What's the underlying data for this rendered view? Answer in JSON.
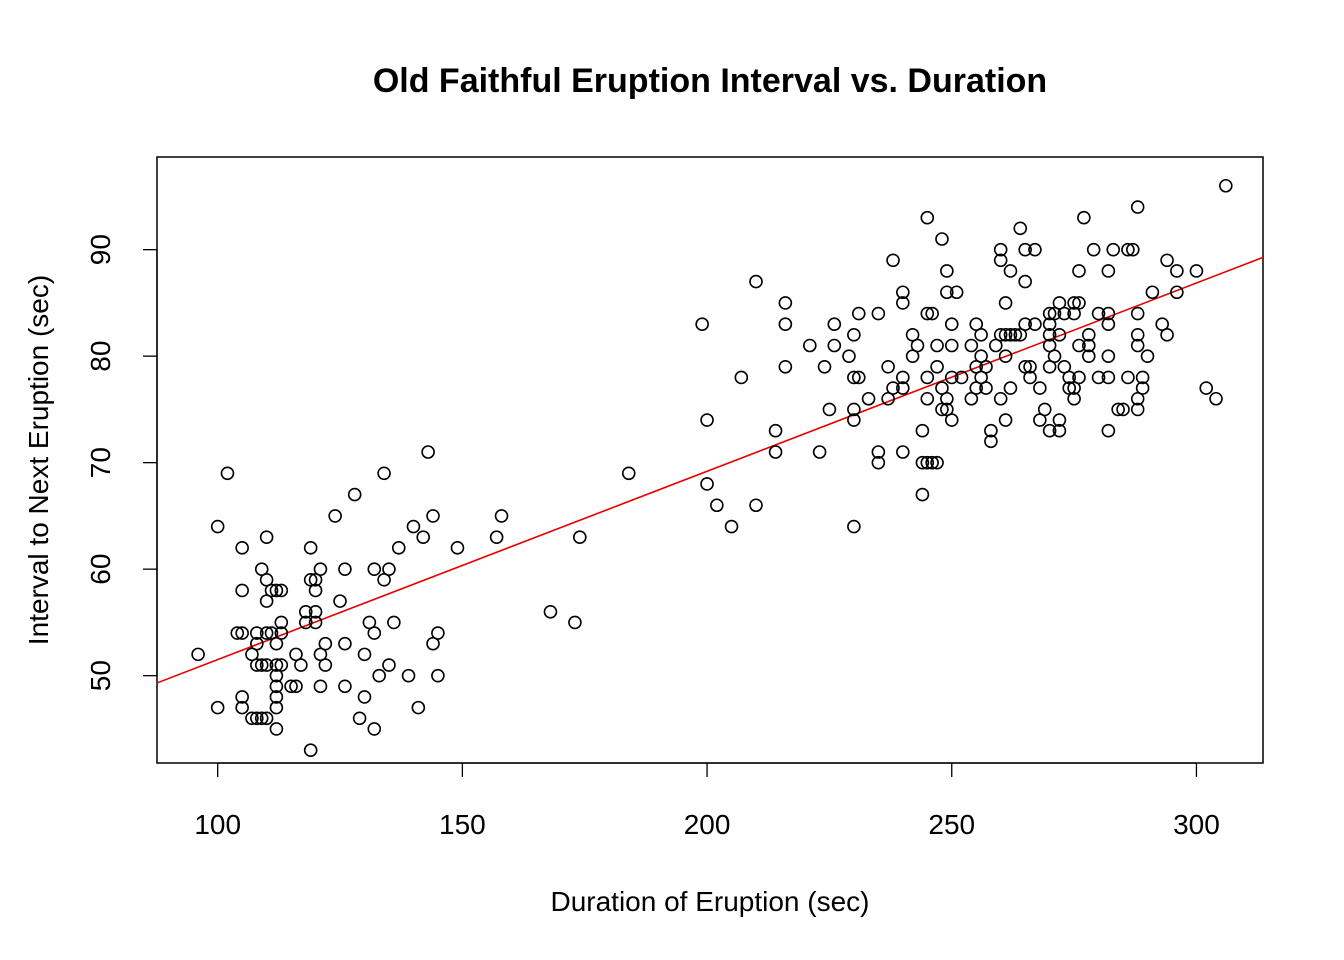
{
  "chart_data": {
    "type": "scatter",
    "title": "Old Faithful Eruption Interval vs. Duration",
    "xlabel": "Duration of Eruption (sec)",
    "ylabel": "Interval to Next Eruption (sec)",
    "xlim": [
      87.6,
      313.6
    ],
    "ylim": [
      41.8,
      98.7
    ],
    "xticks": [
      100,
      150,
      200,
      250,
      300
    ],
    "yticks": [
      50,
      60,
      70,
      80,
      90
    ],
    "grid": false,
    "legend": "none",
    "colors": {
      "points": "#000000",
      "fit_line": "#e60000"
    },
    "fit_line": {
      "intercept": 33.83,
      "slope": 0.1768
    },
    "points": [
      [
        96,
        52
      ],
      [
        100,
        64
      ],
      [
        100,
        47
      ],
      [
        102,
        69
      ],
      [
        104,
        54
      ],
      [
        105,
        62
      ],
      [
        105,
        58
      ],
      [
        105,
        54
      ],
      [
        105,
        48
      ],
      [
        105,
        47
      ],
      [
        107,
        52
      ],
      [
        107,
        46
      ],
      [
        108,
        54
      ],
      [
        108,
        53
      ],
      [
        108,
        51
      ],
      [
        108,
        46
      ],
      [
        109,
        60
      ],
      [
        109,
        51
      ],
      [
        109,
        46
      ],
      [
        110,
        63
      ],
      [
        110,
        59
      ],
      [
        110,
        57
      ],
      [
        110,
        54
      ],
      [
        110,
        51
      ],
      [
        110,
        46
      ],
      [
        111,
        58
      ],
      [
        111,
        54
      ],
      [
        112,
        58
      ],
      [
        112,
        53
      ],
      [
        112,
        51
      ],
      [
        112,
        50
      ],
      [
        112,
        49
      ],
      [
        112,
        48
      ],
      [
        112,
        47
      ],
      [
        112,
        45
      ],
      [
        113,
        58
      ],
      [
        113,
        55
      ],
      [
        113,
        54
      ],
      [
        113,
        51
      ],
      [
        115,
        49
      ],
      [
        116,
        52
      ],
      [
        116,
        49
      ],
      [
        117,
        51
      ],
      [
        118,
        56
      ],
      [
        118,
        55
      ],
      [
        119,
        62
      ],
      [
        119,
        59
      ],
      [
        119,
        43
      ],
      [
        120,
        59
      ],
      [
        120,
        58
      ],
      [
        120,
        56
      ],
      [
        120,
        55
      ],
      [
        121,
        60
      ],
      [
        121,
        52
      ],
      [
        121,
        49
      ],
      [
        122,
        53
      ],
      [
        122,
        51
      ],
      [
        124,
        65
      ],
      [
        125,
        57
      ],
      [
        126,
        60
      ],
      [
        126,
        53
      ],
      [
        126,
        49
      ],
      [
        128,
        67
      ],
      [
        129,
        46
      ],
      [
        130,
        52
      ],
      [
        130,
        48
      ],
      [
        131,
        55
      ],
      [
        132,
        60
      ],
      [
        132,
        54
      ],
      [
        132,
        45
      ],
      [
        133,
        50
      ],
      [
        134,
        69
      ],
      [
        134,
        59
      ],
      [
        135,
        60
      ],
      [
        135,
        51
      ],
      [
        136,
        55
      ],
      [
        137,
        62
      ],
      [
        139,
        50
      ],
      [
        140,
        64
      ],
      [
        141,
        47
      ],
      [
        142,
        63
      ],
      [
        143,
        71
      ],
      [
        144,
        65
      ],
      [
        144,
        53
      ],
      [
        145,
        54
      ],
      [
        145,
        50
      ],
      [
        149,
        62
      ],
      [
        157,
        63
      ],
      [
        158,
        65
      ],
      [
        168,
        56
      ],
      [
        173,
        55
      ],
      [
        174,
        63
      ],
      [
        184,
        69
      ],
      [
        199,
        83
      ],
      [
        200,
        74
      ],
      [
        200,
        68
      ],
      [
        202,
        66
      ],
      [
        205,
        64
      ],
      [
        207,
        78
      ],
      [
        210,
        87
      ],
      [
        210,
        66
      ],
      [
        214,
        73
      ],
      [
        214,
        71
      ],
      [
        216,
        85
      ],
      [
        216,
        83
      ],
      [
        216,
        79
      ],
      [
        221,
        81
      ],
      [
        223,
        71
      ],
      [
        224,
        79
      ],
      [
        225,
        75
      ],
      [
        226,
        83
      ],
      [
        226,
        81
      ],
      [
        229,
        80
      ],
      [
        230,
        82
      ],
      [
        230,
        78
      ],
      [
        230,
        75
      ],
      [
        230,
        74
      ],
      [
        230,
        64
      ],
      [
        231,
        84
      ],
      [
        231,
        78
      ],
      [
        233,
        76
      ],
      [
        235,
        84
      ],
      [
        235,
        71
      ],
      [
        235,
        70
      ],
      [
        237,
        79
      ],
      [
        237,
        76
      ],
      [
        238,
        89
      ],
      [
        238,
        77
      ],
      [
        240,
        86
      ],
      [
        240,
        85
      ],
      [
        240,
        78
      ],
      [
        240,
        77
      ],
      [
        240,
        71
      ],
      [
        242,
        82
      ],
      [
        242,
        80
      ],
      [
        243,
        81
      ],
      [
        244,
        73
      ],
      [
        244,
        70
      ],
      [
        244,
        67
      ],
      [
        245,
        93
      ],
      [
        245,
        84
      ],
      [
        245,
        78
      ],
      [
        245,
        76
      ],
      [
        245,
        70
      ],
      [
        246,
        84
      ],
      [
        246,
        70
      ],
      [
        247,
        81
      ],
      [
        247,
        79
      ],
      [
        247,
        70
      ],
      [
        248,
        91
      ],
      [
        248,
        77
      ],
      [
        248,
        75
      ],
      [
        249,
        88
      ],
      [
        249,
        86
      ],
      [
        249,
        76
      ],
      [
        249,
        75
      ],
      [
        250,
        83
      ],
      [
        250,
        81
      ],
      [
        250,
        78
      ],
      [
        250,
        74
      ],
      [
        251,
        86
      ],
      [
        252,
        78
      ],
      [
        254,
        81
      ],
      [
        254,
        76
      ],
      [
        255,
        83
      ],
      [
        255,
        79
      ],
      [
        255,
        77
      ],
      [
        256,
        82
      ],
      [
        256,
        80
      ],
      [
        256,
        78
      ],
      [
        257,
        79
      ],
      [
        257,
        77
      ],
      [
        258,
        73
      ],
      [
        258,
        72
      ],
      [
        259,
        81
      ],
      [
        260,
        90
      ],
      [
        260,
        89
      ],
      [
        260,
        82
      ],
      [
        260,
        76
      ],
      [
        261,
        85
      ],
      [
        261,
        82
      ],
      [
        261,
        80
      ],
      [
        261,
        74
      ],
      [
        262,
        88
      ],
      [
        262,
        82
      ],
      [
        262,
        77
      ],
      [
        263,
        82
      ],
      [
        264,
        92
      ],
      [
        264,
        82
      ],
      [
        265,
        90
      ],
      [
        265,
        87
      ],
      [
        265,
        83
      ],
      [
        265,
        79
      ],
      [
        266,
        79
      ],
      [
        266,
        78
      ],
      [
        267,
        90
      ],
      [
        267,
        83
      ],
      [
        268,
        77
      ],
      [
        268,
        74
      ],
      [
        269,
        75
      ],
      [
        270,
        84
      ],
      [
        270,
        83
      ],
      [
        270,
        82
      ],
      [
        270,
        81
      ],
      [
        270,
        79
      ],
      [
        270,
        73
      ],
      [
        271,
        84
      ],
      [
        271,
        80
      ],
      [
        272,
        85
      ],
      [
        272,
        82
      ],
      [
        272,
        74
      ],
      [
        272,
        73
      ],
      [
        273,
        84
      ],
      [
        273,
        79
      ],
      [
        274,
        78
      ],
      [
        274,
        77
      ],
      [
        275,
        85
      ],
      [
        275,
        84
      ],
      [
        275,
        77
      ],
      [
        275,
        76
      ],
      [
        276,
        88
      ],
      [
        276,
        85
      ],
      [
        276,
        81
      ],
      [
        276,
        78
      ],
      [
        277,
        93
      ],
      [
        278,
        82
      ],
      [
        278,
        81
      ],
      [
        278,
        80
      ],
      [
        279,
        90
      ],
      [
        280,
        84
      ],
      [
        280,
        78
      ],
      [
        282,
        88
      ],
      [
        282,
        84
      ],
      [
        282,
        83
      ],
      [
        282,
        80
      ],
      [
        282,
        78
      ],
      [
        282,
        73
      ],
      [
        283,
        90
      ],
      [
        284,
        75
      ],
      [
        285,
        75
      ],
      [
        286,
        90
      ],
      [
        286,
        78
      ],
      [
        287,
        90
      ],
      [
        288,
        94
      ],
      [
        288,
        84
      ],
      [
        288,
        82
      ],
      [
        288,
        81
      ],
      [
        288,
        76
      ],
      [
        288,
        75
      ],
      [
        289,
        78
      ],
      [
        289,
        77
      ],
      [
        290,
        80
      ],
      [
        291,
        86
      ],
      [
        293,
        83
      ],
      [
        294,
        89
      ],
      [
        294,
        82
      ],
      [
        296,
        88
      ],
      [
        296,
        86
      ],
      [
        300,
        88
      ],
      [
        302,
        77
      ],
      [
        304,
        76
      ],
      [
        306,
        96
      ]
    ]
  }
}
